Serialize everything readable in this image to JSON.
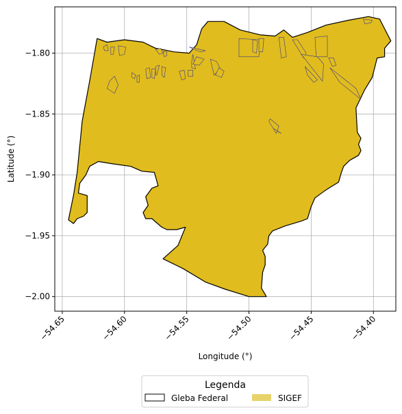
{
  "chart_data": {
    "type": "map",
    "xlabel": "Longitude (°)",
    "ylabel": "Latitude (°)",
    "xlim": [
      -54.656,
      -54.382
    ],
    "ylim": [
      -2.012,
      -1.762
    ],
    "x_ticks": [
      {
        "value": -54.65,
        "label": "−54.65"
      },
      {
        "value": -54.6,
        "label": "−54.60"
      },
      {
        "value": -54.55,
        "label": "−54.55"
      },
      {
        "value": -54.5,
        "label": "−54.50"
      },
      {
        "value": -54.45,
        "label": "−54.45"
      },
      {
        "value": -54.4,
        "label": "−54.40"
      }
    ],
    "y_ticks": [
      {
        "value": -1.8,
        "label": "−1.80"
      },
      {
        "value": -1.85,
        "label": "−1.85"
      },
      {
        "value": -1.9,
        "label": "−1.90"
      },
      {
        "value": -1.95,
        "label": "−1.95"
      },
      {
        "value": -2.0,
        "label": "−2.00"
      }
    ],
    "grid": true,
    "colors": {
      "sigef_fill": "#e0bc1e",
      "sigef_legend": "#e7d36a",
      "sigef_edge": "#3b3a8c",
      "boundary": "#000000",
      "grid": "#b0b0b0"
    },
    "legend": {
      "title": "Legenda",
      "placement": "bottom-center",
      "entries": [
        {
          "label": "Gleba Federal",
          "style": "outline"
        },
        {
          "label": "SIGEF",
          "style": "fill"
        }
      ]
    },
    "gleba_federal_polygon": [
      [
        -54.622,
        -1.788
      ],
      [
        -54.614,
        -1.791
      ],
      [
        -54.6,
        -1.789
      ],
      [
        -54.585,
        -1.791
      ],
      [
        -54.575,
        -1.796
      ],
      [
        -54.56,
        -1.799
      ],
      [
        -54.548,
        -1.8
      ],
      [
        -54.542,
        -1.793
      ],
      [
        -54.538,
        -1.78
      ],
      [
        -54.533,
        -1.774
      ],
      [
        -54.52,
        -1.774
      ],
      [
        -54.507,
        -1.781
      ],
      [
        -54.491,
        -1.785
      ],
      [
        -54.479,
        -1.786
      ],
      [
        -54.472,
        -1.781
      ],
      [
        -54.465,
        -1.787
      ],
      [
        -54.453,
        -1.783
      ],
      [
        -54.438,
        -1.777
      ],
      [
        -54.42,
        -1.773
      ],
      [
        -54.404,
        -1.77
      ],
      [
        -54.395,
        -1.772
      ],
      [
        -54.391,
        -1.78
      ],
      [
        -54.386,
        -1.79
      ],
      [
        -54.391,
        -1.796
      ],
      [
        -54.391,
        -1.803
      ],
      [
        -54.397,
        -1.804
      ],
      [
        -54.401,
        -1.82
      ],
      [
        -54.407,
        -1.83
      ],
      [
        -54.414,
        -1.845
      ],
      [
        -54.413,
        -1.865
      ],
      [
        -54.41,
        -1.87
      ],
      [
        -54.412,
        -1.875
      ],
      [
        -54.41,
        -1.88
      ],
      [
        -54.412,
        -1.884
      ],
      [
        -54.419,
        -1.888
      ],
      [
        -54.424,
        -1.893
      ],
      [
        -54.426,
        -1.899
      ],
      [
        -54.428,
        -1.906
      ],
      [
        -54.436,
        -1.911
      ],
      [
        -54.439,
        -1.913
      ],
      [
        -54.447,
        -1.919
      ],
      [
        -54.45,
        -1.926
      ],
      [
        -54.453,
        -1.936
      ],
      [
        -54.458,
        -1.938
      ],
      [
        -54.471,
        -1.942
      ],
      [
        -54.481,
        -1.946
      ],
      [
        -54.484,
        -1.95
      ],
      [
        -54.485,
        -1.957
      ],
      [
        -54.489,
        -1.962
      ],
      [
        -54.487,
        -1.967
      ],
      [
        -54.487,
        -1.974
      ],
      [
        -54.489,
        -1.98
      ],
      [
        -54.49,
        -1.993
      ],
      [
        -54.486,
        -2.0
      ],
      [
        -54.5,
        -2.0
      ],
      [
        -54.519,
        -1.994
      ],
      [
        -54.535,
        -1.988
      ],
      [
        -54.553,
        -1.977
      ],
      [
        -54.569,
        -1.969
      ],
      [
        -54.557,
        -1.958
      ],
      [
        -54.551,
        -1.943
      ],
      [
        -54.558,
        -1.945
      ],
      [
        -54.566,
        -1.945
      ],
      [
        -54.57,
        -1.943
      ],
      [
        -54.578,
        -1.936
      ],
      [
        -54.583,
        -1.936
      ],
      [
        -54.585,
        -1.931
      ],
      [
        -54.581,
        -1.925
      ],
      [
        -54.583,
        -1.918
      ],
      [
        -54.578,
        -1.911
      ],
      [
        -54.573,
        -1.909
      ],
      [
        -54.576,
        -1.898
      ],
      [
        -54.586,
        -1.897
      ],
      [
        -54.595,
        -1.893
      ],
      [
        -54.609,
        -1.891
      ],
      [
        -54.621,
        -1.889
      ],
      [
        -54.628,
        -1.893
      ],
      [
        -54.631,
        -1.9
      ],
      [
        -54.636,
        -1.907
      ],
      [
        -54.637,
        -1.915
      ],
      [
        -54.63,
        -1.917
      ],
      [
        -54.63,
        -1.931
      ],
      [
        -54.633,
        -1.934
      ],
      [
        -54.638,
        -1.936
      ],
      [
        -54.641,
        -1.94
      ],
      [
        -54.645,
        -1.937
      ],
      [
        -54.641,
        -1.917
      ],
      [
        -54.638,
        -1.898
      ],
      [
        -54.634,
        -1.856
      ],
      [
        -54.628,
        -1.823
      ]
    ],
    "sigef_parcels": [
      [
        [
          -54.617,
          -1.795
        ],
        [
          -54.614,
          -1.793
        ],
        [
          -54.613,
          -1.798
        ],
        [
          -54.616,
          -1.798
        ]
      ],
      [
        [
          -54.611,
          -1.795
        ],
        [
          -54.608,
          -1.795
        ],
        [
          -54.609,
          -1.801
        ],
        [
          -54.611,
          -1.801
        ]
      ],
      [
        [
          -54.605,
          -1.794
        ],
        [
          -54.599,
          -1.795
        ],
        [
          -54.6,
          -1.801
        ],
        [
          -54.604,
          -1.802
        ]
      ],
      [
        [
          -54.612,
          -1.823
        ],
        [
          -54.608,
          -1.819
        ],
        [
          -54.605,
          -1.826
        ],
        [
          -54.608,
          -1.833
        ],
        [
          -54.614,
          -1.829
        ]
      ],
      [
        [
          -54.594,
          -1.816
        ],
        [
          -54.591,
          -1.818
        ],
        [
          -54.592,
          -1.821
        ],
        [
          -54.594,
          -1.82
        ]
      ],
      [
        [
          -54.59,
          -1.819
        ],
        [
          -54.588,
          -1.818
        ],
        [
          -54.588,
          -1.824
        ],
        [
          -54.59,
          -1.824
        ]
      ],
      [
        [
          -54.583,
          -1.813
        ],
        [
          -54.58,
          -1.812
        ],
        [
          -54.579,
          -1.82
        ],
        [
          -54.582,
          -1.821
        ]
      ],
      [
        [
          -54.578,
          -1.813
        ],
        [
          -54.575,
          -1.813
        ],
        [
          -54.576,
          -1.821
        ],
        [
          -54.578,
          -1.82
        ]
      ],
      [
        [
          -54.575,
          -1.811
        ],
        [
          -54.572,
          -1.81
        ],
        [
          -54.574,
          -1.818
        ],
        [
          -54.575,
          -1.818
        ]
      ],
      [
        [
          -54.57,
          -1.811
        ],
        [
          -54.567,
          -1.812
        ],
        [
          -54.568,
          -1.82
        ],
        [
          -54.57,
          -1.818
        ]
      ],
      [
        [
          -54.575,
          -1.797
        ],
        [
          -54.571,
          -1.796
        ],
        [
          -54.569,
          -1.8
        ],
        [
          -54.572,
          -1.801
        ]
      ],
      [
        [
          -54.569,
          -1.799
        ],
        [
          -54.566,
          -1.799
        ],
        [
          -54.566,
          -1.802
        ],
        [
          -54.568,
          -1.803
        ]
      ],
      [
        [
          -54.556,
          -1.815
        ],
        [
          -54.552,
          -1.814
        ],
        [
          -54.551,
          -1.821
        ],
        [
          -54.554,
          -1.822
        ]
      ],
      [
        [
          -54.549,
          -1.814
        ],
        [
          -54.545,
          -1.814
        ],
        [
          -54.545,
          -1.819
        ],
        [
          -54.549,
          -1.819
        ]
      ],
      [
        [
          -54.548,
          -1.795
        ],
        [
          -54.542,
          -1.798
        ],
        [
          -54.538,
          -1.799
        ],
        [
          -54.535,
          -1.798
        ]
      ],
      [
        [
          -54.546,
          -1.807
        ],
        [
          -54.545,
          -1.801
        ],
        [
          -54.543,
          -1.813
        ],
        [
          -54.546,
          -1.812
        ]
      ],
      [
        [
          -54.542,
          -1.803
        ],
        [
          -54.536,
          -1.805
        ],
        [
          -54.54,
          -1.81
        ],
        [
          -54.545,
          -1.809
        ]
      ],
      [
        [
          -54.531,
          -1.805
        ],
        [
          -54.526,
          -1.807
        ],
        [
          -54.523,
          -1.813
        ],
        [
          -54.528,
          -1.818
        ]
      ],
      [
        [
          -54.524,
          -1.812
        ],
        [
          -54.52,
          -1.815
        ],
        [
          -54.522,
          -1.82
        ],
        [
          -54.527,
          -1.818
        ]
      ],
      [
        [
          -54.508,
          -1.788
        ],
        [
          -54.491,
          -1.789
        ],
        [
          -54.492,
          -1.803
        ],
        [
          -54.508,
          -1.803
        ]
      ],
      [
        [
          -54.497,
          -1.789
        ],
        [
          -54.493,
          -1.79
        ],
        [
          -54.494,
          -1.8
        ],
        [
          -54.497,
          -1.799
        ]
      ],
      [
        [
          -54.492,
          -1.788
        ],
        [
          -54.488,
          -1.788
        ],
        [
          -54.489,
          -1.799
        ],
        [
          -54.492,
          -1.799
        ]
      ],
      [
        [
          -54.476,
          -1.787
        ],
        [
          -54.472,
          -1.787
        ],
        [
          -54.47,
          -1.803
        ],
        [
          -54.474,
          -1.804
        ]
      ],
      [
        [
          -54.465,
          -1.789
        ],
        [
          -54.461,
          -1.789
        ],
        [
          -54.454,
          -1.8
        ],
        [
          -54.456,
          -1.804
        ]
      ],
      [
        [
          -54.458,
          -1.801
        ],
        [
          -54.445,
          -1.803
        ],
        [
          -54.44,
          -1.809
        ],
        [
          -54.441,
          -1.823
        ]
      ],
      [
        [
          -54.435,
          -1.812
        ],
        [
          -54.427,
          -1.824
        ],
        [
          -54.41,
          -1.838
        ],
        [
          -54.414,
          -1.829
        ]
      ],
      [
        [
          -54.447,
          -1.787
        ],
        [
          -54.437,
          -1.786
        ],
        [
          -54.437,
          -1.803
        ],
        [
          -54.446,
          -1.803
        ]
      ],
      [
        [
          -54.455,
          -1.811
        ],
        [
          -54.453,
          -1.818
        ],
        [
          -54.448,
          -1.824
        ],
        [
          -54.445,
          -1.822
        ]
      ],
      [
        [
          -54.436,
          -1.804
        ],
        [
          -54.432,
          -1.804
        ],
        [
          -54.43,
          -1.81
        ],
        [
          -54.433,
          -1.811
        ]
      ],
      [
        [
          -54.408,
          -1.772
        ],
        [
          -54.401,
          -1.773
        ],
        [
          -54.402,
          -1.775
        ],
        [
          -54.407,
          -1.776
        ]
      ],
      [
        [
          -54.484,
          -1.856
        ],
        [
          -54.483,
          -1.854
        ],
        [
          -54.476,
          -1.86
        ],
        [
          -54.478,
          -1.866
        ]
      ],
      [
        [
          -54.48,
          -1.862
        ],
        [
          -54.477,
          -1.864
        ],
        [
          -54.476,
          -1.865
        ],
        [
          -54.474,
          -1.866
        ]
      ]
    ]
  }
}
